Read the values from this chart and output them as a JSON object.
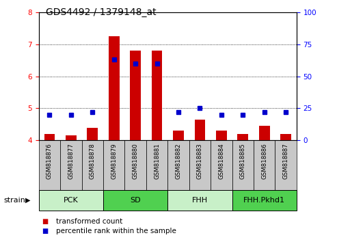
{
  "title": "GDS4492 / 1379148_at",
  "samples": [
    "GSM818876",
    "GSM818877",
    "GSM818878",
    "GSM818879",
    "GSM818880",
    "GSM818881",
    "GSM818882",
    "GSM818883",
    "GSM818884",
    "GSM818885",
    "GSM818886",
    "GSM818887"
  ],
  "transformed_count": [
    4.2,
    4.15,
    4.4,
    7.25,
    6.8,
    6.8,
    4.3,
    4.65,
    4.3,
    4.2,
    4.45,
    4.2
  ],
  "percentile_rank": [
    20,
    20,
    22,
    63,
    60,
    60,
    22,
    25,
    20,
    20,
    22,
    22
  ],
  "groups": [
    {
      "label": "PCK",
      "start": 0,
      "end": 3,
      "color": "#C8F0C8"
    },
    {
      "label": "SD",
      "start": 3,
      "end": 6,
      "color": "#50D050"
    },
    {
      "label": "FHH",
      "start": 6,
      "end": 9,
      "color": "#C8F0C8"
    },
    {
      "label": "FHH.Pkhd1",
      "start": 9,
      "end": 12,
      "color": "#50D050"
    }
  ],
  "ylim_left": [
    4,
    8
  ],
  "ylim_right": [
    0,
    100
  ],
  "yticks_left": [
    4,
    5,
    6,
    7,
    8
  ],
  "yticks_right": [
    0,
    25,
    50,
    75,
    100
  ],
  "bar_color": "#CC0000",
  "dot_color": "#0000CC",
  "bar_width": 0.5,
  "bar_bottom": 4.0,
  "legend_items": [
    {
      "label": "transformed count",
      "color": "#CC0000"
    },
    {
      "label": "percentile rank within the sample",
      "color": "#0000CC"
    }
  ],
  "strain_label": "strain",
  "tick_bg_color": "#C8C8C8"
}
